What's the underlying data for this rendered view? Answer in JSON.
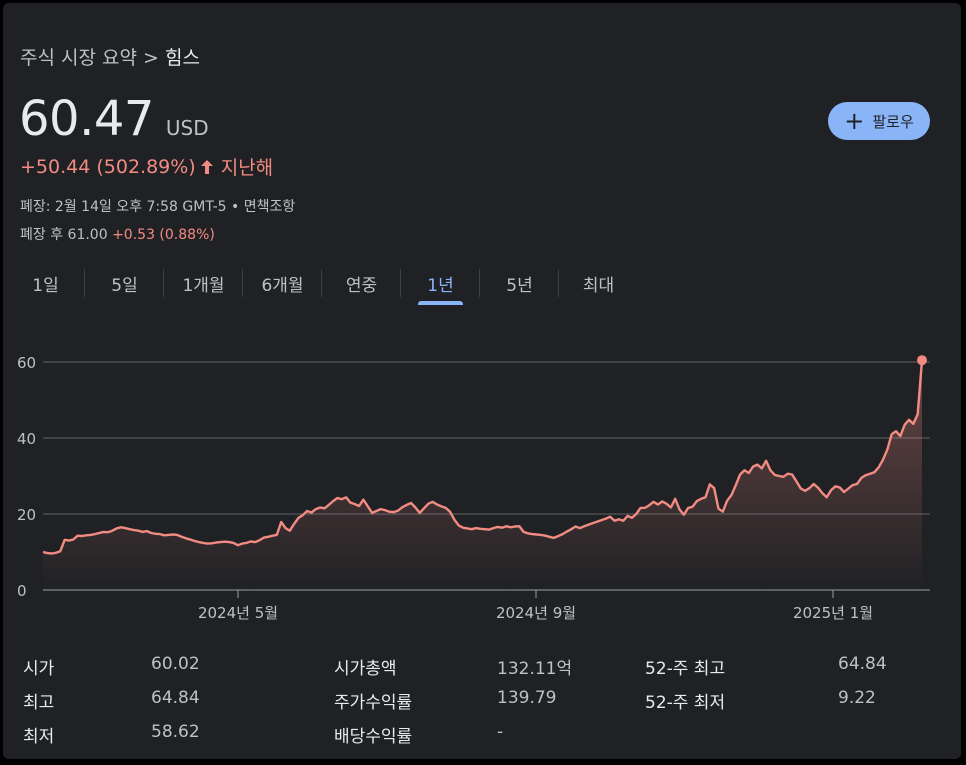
{
  "breadcrumb": {
    "parent": "주식 시장 요약",
    "separator": ">",
    "current": "힘스"
  },
  "quote": {
    "price": "60.47",
    "currency": "USD",
    "change": "+50.44 (502.89%)",
    "direction_icon": "arrow-up-icon",
    "period": "지난해",
    "close_info": "폐장: 2월 14일 오후 7:58 GMT-5 • 면책조항",
    "after_hours_label": "폐장 후 61.00",
    "after_hours_change": "+0.53 (0.88%)"
  },
  "follow_button": {
    "icon": "plus-icon",
    "label": "팔로우"
  },
  "tabs": [
    {
      "label": "1일",
      "active": false
    },
    {
      "label": "5일",
      "active": false
    },
    {
      "label": "1개월",
      "active": false
    },
    {
      "label": "6개월",
      "active": false
    },
    {
      "label": "연중",
      "active": false
    },
    {
      "label": "1년",
      "active": true
    },
    {
      "label": "5년",
      "active": false
    },
    {
      "label": "최대",
      "active": false
    }
  ],
  "colors": {
    "line": "#f28b82",
    "accent": "#8ab4f8",
    "background": "#202124",
    "grid": "#5f6368"
  },
  "chart_data": {
    "type": "area",
    "x_tick_labels": [
      "2024년 5월",
      "2024년 9월",
      "2025년 1월"
    ],
    "y_ticks": [
      0,
      20,
      40,
      60
    ],
    "ylim": [
      0,
      60
    ],
    "series": [
      {
        "values": [
          10.0,
          9.7,
          9.6,
          9.8,
          10.2,
          13.2,
          13.0,
          13.3,
          14.3,
          14.2,
          14.4,
          14.5,
          14.7,
          15.0,
          15.3,
          15.2,
          15.6,
          16.2,
          16.5,
          16.3,
          16.0,
          15.8,
          15.6,
          15.3,
          15.5,
          15.0,
          14.8,
          14.7,
          14.4,
          14.5,
          14.6,
          14.5,
          14.0,
          13.6,
          13.3,
          12.9,
          12.6,
          12.4,
          12.2,
          12.3,
          12.5,
          12.6,
          12.7,
          12.6,
          12.4,
          11.8,
          12.2,
          12.4,
          12.8,
          12.6,
          13.1,
          13.8,
          14.0,
          14.3,
          14.5,
          17.9,
          16.3,
          15.6,
          17.4,
          19.0,
          19.7,
          20.8,
          20.4,
          21.3,
          21.7,
          21.5,
          22.4,
          23.4,
          24.2,
          23.9,
          24.4,
          23.0,
          22.6,
          22.1,
          23.8,
          22.0,
          20.3,
          20.8,
          21.3,
          21.0,
          20.6,
          20.5,
          20.9,
          21.8,
          22.4,
          22.9,
          21.7,
          20.3,
          21.5,
          22.7,
          23.2,
          22.5,
          22.0,
          21.6,
          20.6,
          18.5,
          17.0,
          16.4,
          16.2,
          16.0,
          16.3,
          16.1,
          16.0,
          15.9,
          16.3,
          16.6,
          16.4,
          16.8,
          16.5,
          16.7,
          16.8,
          15.3,
          14.9,
          14.7,
          14.6,
          14.5,
          14.3,
          14.0,
          13.7,
          14.2,
          14.7,
          15.4,
          16.0,
          16.7,
          16.3,
          16.8,
          17.2,
          17.6,
          18.0,
          18.4,
          18.8,
          19.3,
          18.2,
          18.6,
          18.2,
          19.5,
          19.0,
          20.0,
          21.6,
          21.6,
          22.3,
          23.2,
          22.5,
          23.3,
          22.7,
          21.7,
          24.0,
          21.2,
          19.8,
          21.6,
          21.9,
          23.4,
          24.0,
          24.4,
          27.8,
          26.8,
          21.4,
          20.6,
          23.5,
          25.0,
          27.6,
          30.4,
          31.5,
          30.8,
          32.5,
          33.0,
          32.0,
          34.0,
          31.5,
          30.3,
          30.0,
          29.8,
          30.6,
          30.4,
          28.6,
          26.7,
          26.1,
          26.8,
          27.9,
          26.9,
          25.5,
          24.4,
          26.3,
          27.3,
          27.0,
          25.8,
          26.7,
          27.6,
          27.9,
          29.5,
          30.2,
          30.6,
          31.0,
          32.3,
          34.3,
          37.0,
          41.0,
          41.8,
          40.5,
          43.5,
          44.8,
          43.7,
          46.3,
          60.47
        ]
      }
    ]
  },
  "stats": {
    "col1": [
      {
        "label": "시가",
        "value": "60.02"
      },
      {
        "label": "최고",
        "value": "64.84"
      },
      {
        "label": "최저",
        "value": "58.62"
      }
    ],
    "col2": [
      {
        "label": "시가총액",
        "value": "132.11억"
      },
      {
        "label": "주가수익률",
        "value": "139.79"
      },
      {
        "label": "배당수익률",
        "value": "-"
      }
    ],
    "col3": [
      {
        "label": "52-주 최고",
        "value": "64.84"
      },
      {
        "label": "52-주 최저",
        "value": "9.22"
      }
    ]
  }
}
